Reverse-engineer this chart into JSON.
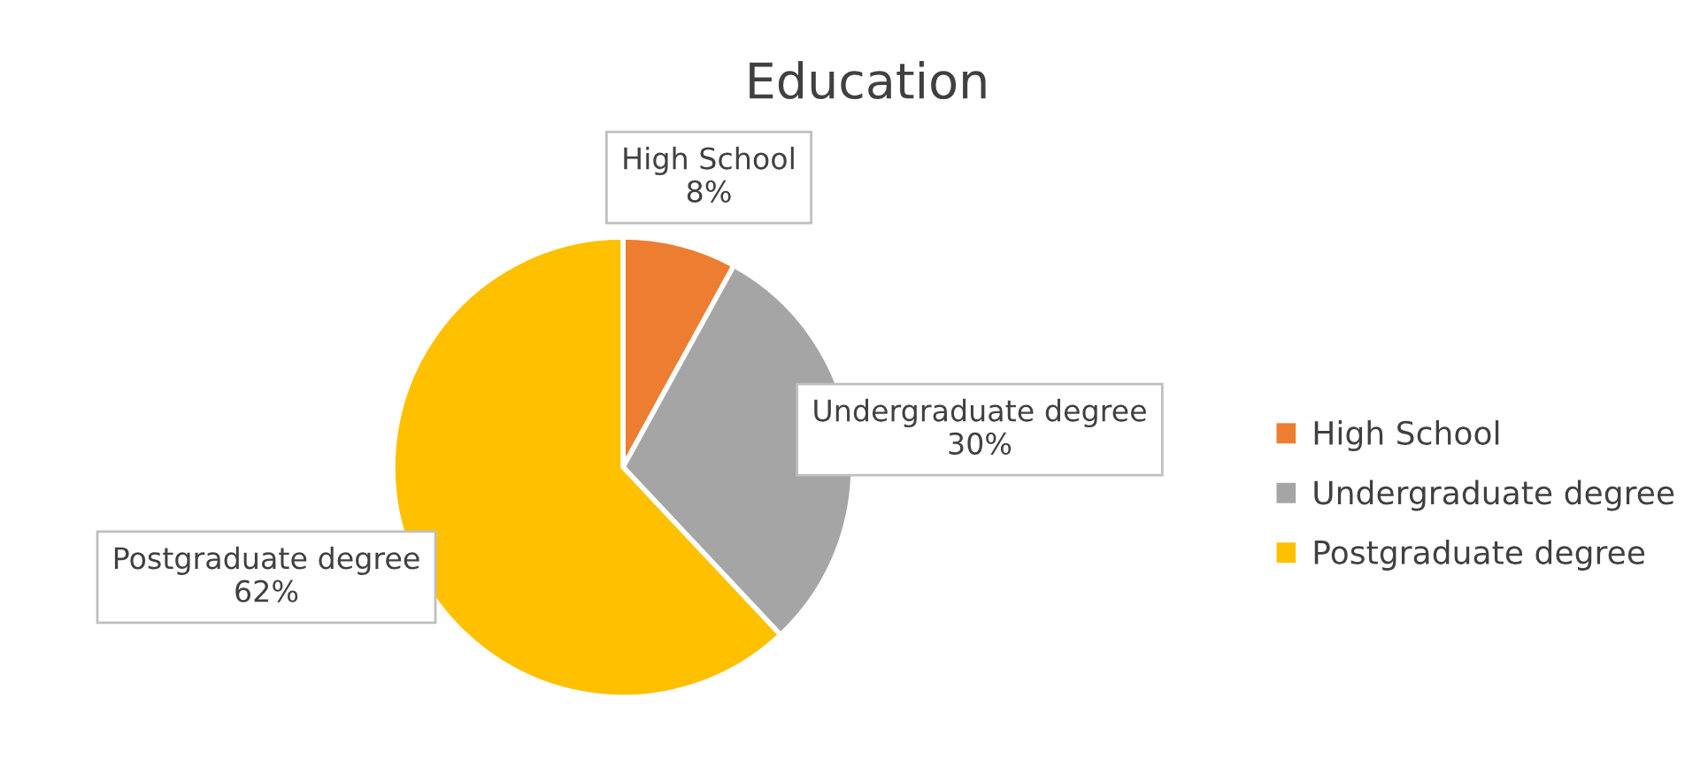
{
  "chart_data": {
    "type": "pie",
    "title": "Education",
    "categories": [
      "High School",
      "Undergraduate degree",
      "Postgraduate degree"
    ],
    "values": [
      8,
      30,
      62
    ],
    "colors": [
      "#ed7d31",
      "#a5a5a5",
      "#ffc000"
    ],
    "value_labels": [
      "8%",
      "30%",
      "62%"
    ],
    "legend": "right"
  }
}
